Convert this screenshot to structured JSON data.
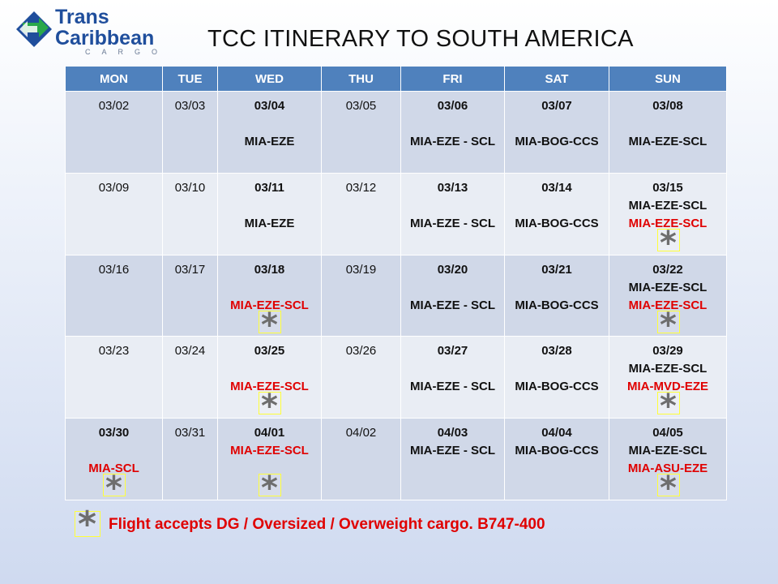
{
  "logo": {
    "line1": "Trans",
    "line2": "Caribbean",
    "sub": "CARGO"
  },
  "title": "TCC ITINERARY TO SOUTH AMERICA",
  "days": [
    "MON",
    "TUE",
    "WED",
    "THU",
    "FRI",
    "SAT",
    "SUN"
  ],
  "weeks": [
    [
      {
        "date": "03/02"
      },
      {
        "date": "03/03"
      },
      {
        "date": "03/04",
        "bold": true,
        "routes": [
          {
            "text": "MIA-EZE",
            "gap": true
          }
        ]
      },
      {
        "date": "03/05"
      },
      {
        "date": "03/06",
        "bold": true,
        "routes": [
          {
            "text": "MIA-EZE - SCL",
            "gap": true
          }
        ]
      },
      {
        "date": "03/07",
        "bold": true,
        "routes": [
          {
            "text": "MIA-BOG-CCS",
            "gap": true
          }
        ]
      },
      {
        "date": "03/08",
        "bold": true,
        "routes": [
          {
            "text": "MIA-EZE-SCL",
            "gap": true
          }
        ]
      }
    ],
    [
      {
        "date": "03/09"
      },
      {
        "date": "03/10"
      },
      {
        "date": "03/11",
        "bold": true,
        "routes": [
          {
            "text": "MIA-EZE",
            "gap": true
          }
        ]
      },
      {
        "date": "03/12"
      },
      {
        "date": "03/13",
        "bold": true,
        "routes": [
          {
            "text": "MIA-EZE - SCL",
            "gap": true
          }
        ]
      },
      {
        "date": "03/14",
        "bold": true,
        "routes": [
          {
            "text": "MIA-BOG-CCS",
            "gap": true
          }
        ]
      },
      {
        "date": "03/15",
        "bold": true,
        "routes": [
          {
            "text": "MIA-EZE-SCL"
          },
          {
            "text": "MIA-EZE-SCL",
            "red": true
          }
        ],
        "dg": true
      }
    ],
    [
      {
        "date": "03/16"
      },
      {
        "date": "03/17"
      },
      {
        "date": "03/18",
        "bold": true,
        "routes": [
          {
            "text": "MIA-EZE-SCL",
            "red": true,
            "gap": true
          }
        ],
        "dg": true
      },
      {
        "date": "03/19"
      },
      {
        "date": "03/20",
        "bold": true,
        "routes": [
          {
            "text": "MIA-EZE - SCL",
            "gap": true
          }
        ]
      },
      {
        "date": "03/21",
        "bold": true,
        "routes": [
          {
            "text": "MIA-BOG-CCS",
            "gap": true
          }
        ]
      },
      {
        "date": "03/22",
        "bold": true,
        "routes": [
          {
            "text": "MIA-EZE-SCL"
          },
          {
            "text": "MIA-EZE-SCL",
            "red": true
          }
        ],
        "dg": true
      }
    ],
    [
      {
        "date": "03/23"
      },
      {
        "date": "03/24"
      },
      {
        "date": "03/25",
        "bold": true,
        "routes": [
          {
            "text": "MIA-EZE-SCL",
            "red": true,
            "gap": true
          }
        ],
        "dg": true
      },
      {
        "date": "03/26"
      },
      {
        "date": "03/27",
        "bold": true,
        "routes": [
          {
            "text": "MIA-EZE - SCL",
            "gap": true
          }
        ]
      },
      {
        "date": "03/28",
        "bold": true,
        "routes": [
          {
            "text": "MIA-BOG-CCS",
            "gap": true
          }
        ]
      },
      {
        "date": "03/29",
        "bold": true,
        "routes": [
          {
            "text": "MIA-EZE-SCL"
          },
          {
            "text": "MIA-MVD-EZE",
            "red": true
          }
        ],
        "dg": true
      }
    ],
    [
      {
        "date": "03/30",
        "bold": true,
        "routes": [
          {
            "text": "MIA-SCL",
            "red": true,
            "gap": true
          }
        ],
        "dg": true
      },
      {
        "date": "03/31"
      },
      {
        "date": "04/01",
        "bold": true,
        "routes": [
          {
            "text": "MIA-EZE-SCL",
            "red": true
          }
        ],
        "dg": true
      },
      {
        "date": "04/02"
      },
      {
        "date": "04/03",
        "bold": true,
        "routes": [
          {
            "text": "MIA-EZE - SCL"
          }
        ]
      },
      {
        "date": "04/04",
        "bold": true,
        "routes": [
          {
            "text": "MIA-BOG-CCS"
          }
        ]
      },
      {
        "date": "04/05",
        "bold": true,
        "routes": [
          {
            "text": "MIA-EZE-SCL"
          },
          {
            "text": "MIA-ASU-EZE",
            "red": true
          }
        ],
        "dg": true
      }
    ]
  ],
  "legend": {
    "text": "Flight accepts DG / Oversized / Overweight cargo. B747-400"
  },
  "colors": {
    "header": "#4f81bd",
    "row_odd": "#d0d8e8",
    "row_even": "#e9edf4",
    "dg_route": "#e00000",
    "logo_blue": "#1f4e9c",
    "logo_green": "#2aa84a"
  }
}
